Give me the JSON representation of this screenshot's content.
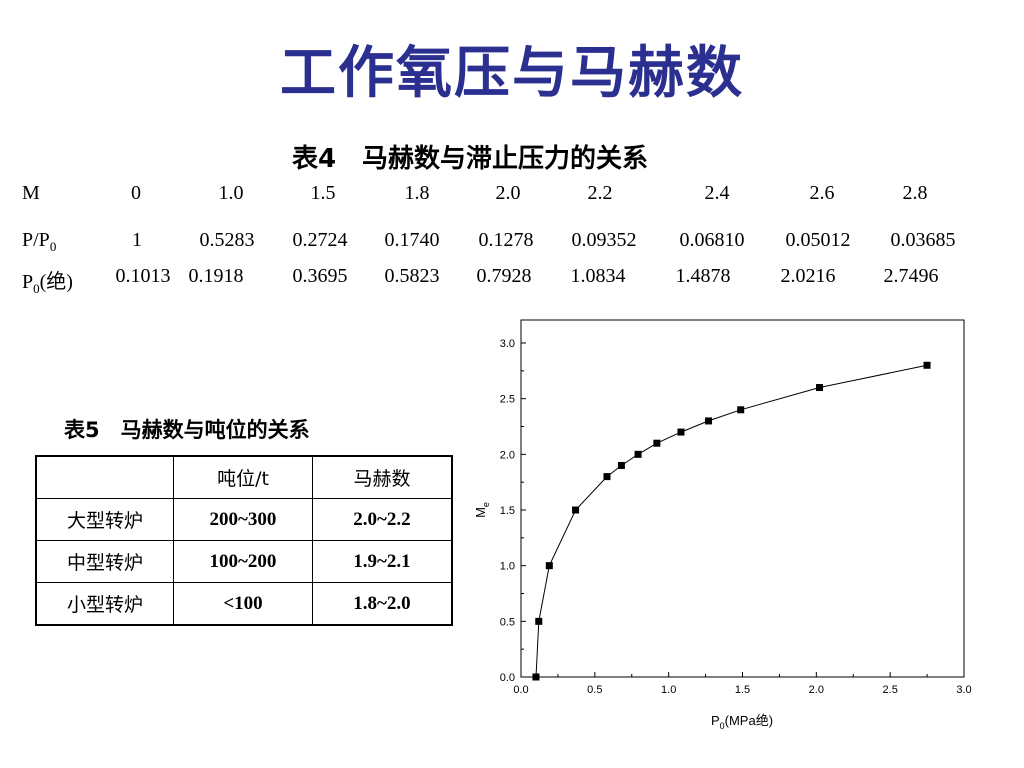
{
  "title": "工作氧压与马赫数",
  "table4": {
    "caption": "表4　马赫数与滞止压力的关系",
    "rows": [
      {
        "label": "M",
        "values": [
          "0",
          "1.0",
          "1.5",
          "1.8",
          "2.0",
          "2.2",
          "2.4",
          "2.6",
          "2.8"
        ]
      },
      {
        "label": "P/P",
        "label_sub": "0",
        "values": [
          "1",
          "0.5283",
          "0.2724",
          "0.1740",
          "0.1278",
          "0.09352",
          "0.06810",
          "0.05012",
          "0.03685"
        ]
      },
      {
        "label": "P",
        "label_sub": "0",
        "label_suffix": "(绝)",
        "values": [
          "0.1013",
          "0.1918",
          "0.3695",
          "0.5823",
          "0.7928",
          "1.0834",
          "1.4878",
          "2.0216",
          "2.7496"
        ]
      }
    ]
  },
  "table5": {
    "caption": "表5　马赫数与吨位的关系",
    "header": [
      "",
      "吨位/t",
      "马赫数"
    ],
    "rows": [
      [
        "大型转炉",
        "200~300",
        "2.0~2.2"
      ],
      [
        "中型转炉",
        "100~200",
        "1.9~2.1"
      ],
      [
        "小型转炉",
        "<100",
        "1.8~2.0"
      ]
    ]
  },
  "chart_data": {
    "type": "line",
    "title": "",
    "xlabel": "P",
    "xlabel_sub": "0",
    "xlabel_suffix": "(MPa绝)",
    "ylabel": "M",
    "ylabel_sub": "e",
    "xlim": [
      0.0,
      3.0
    ],
    "ylim": [
      0.0,
      3.0
    ],
    "xticks": [
      "0.0",
      "0.5",
      "1.0",
      "1.5",
      "2.0",
      "2.5",
      "3.0"
    ],
    "yticks": [
      "0.0",
      "0.5",
      "1.0",
      "1.5",
      "2.0",
      "2.5",
      "3.0"
    ],
    "grid": false,
    "series": [
      {
        "marker": "square",
        "color": "#000000",
        "x": [
          0.1013,
          0.1203,
          0.1918,
          0.3695,
          0.5823,
          0.68,
          0.7928,
          0.92,
          1.0834,
          1.27,
          1.4878,
          2.0216,
          2.7496
        ],
        "y": [
          0.0,
          0.5,
          1.0,
          1.5,
          1.8,
          1.9,
          2.0,
          2.1,
          2.2,
          2.3,
          2.4,
          2.6,
          2.8
        ]
      }
    ]
  }
}
